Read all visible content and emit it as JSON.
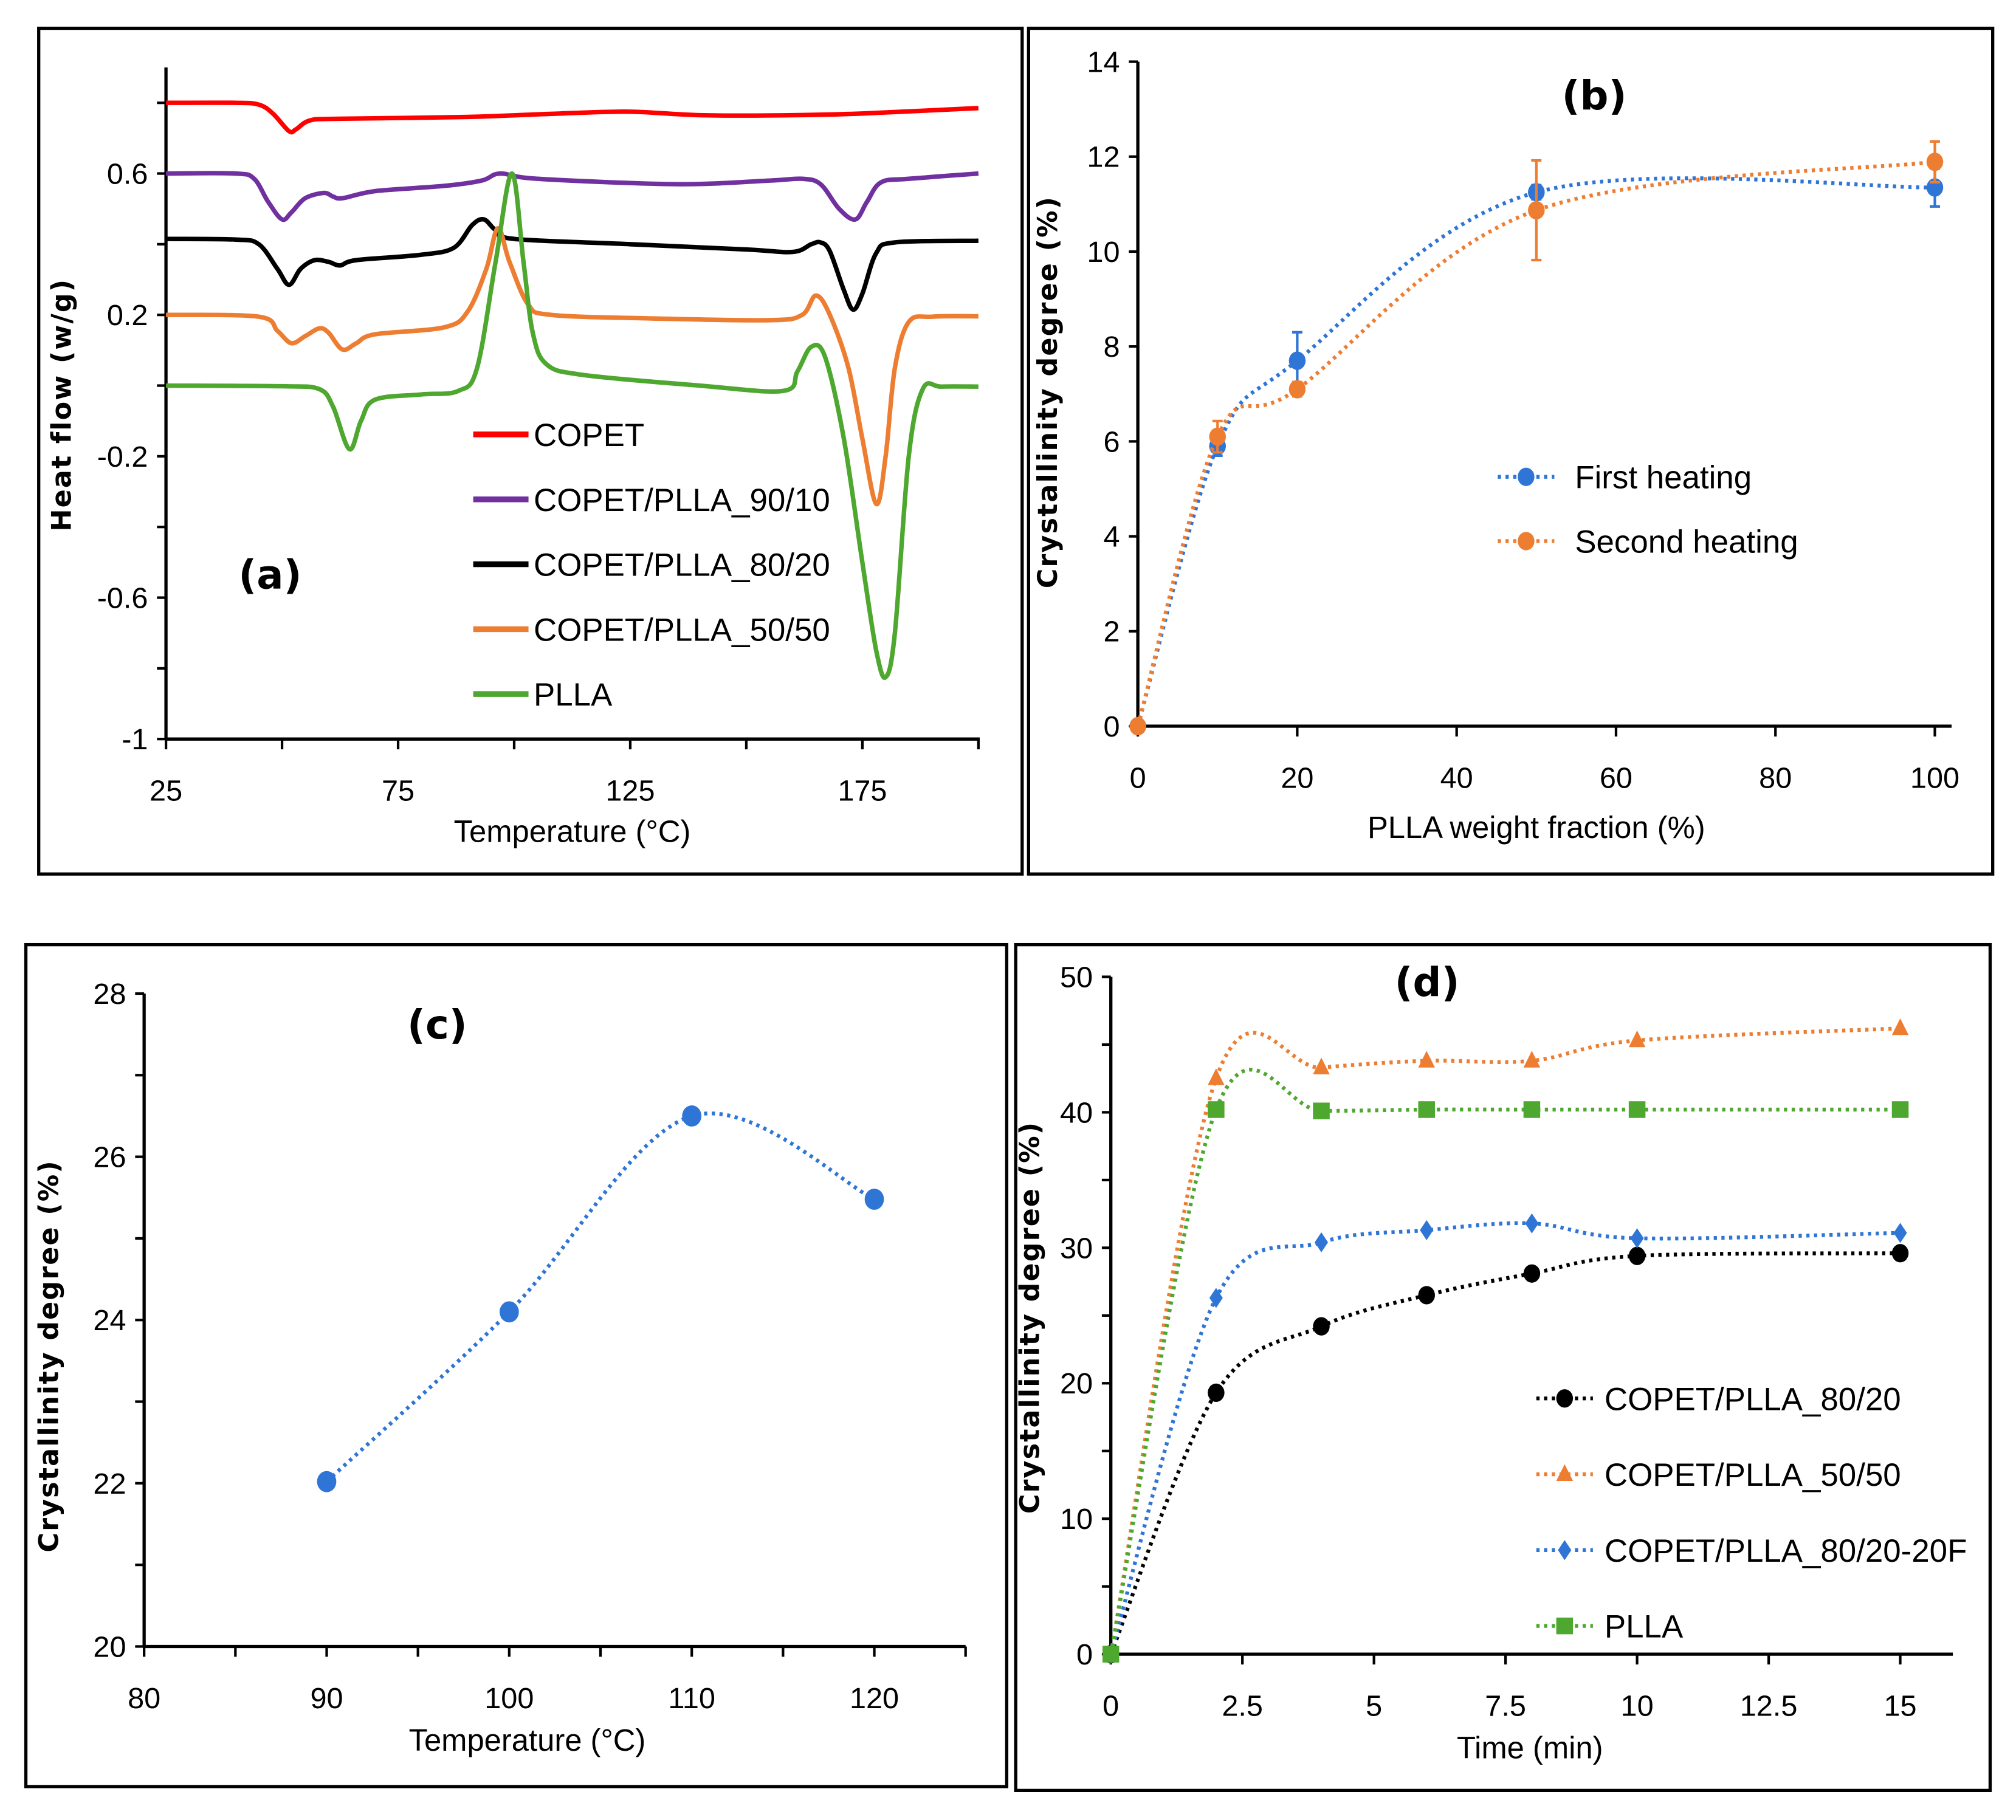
{
  "chart_data": [
    {
      "type": "line",
      "panel_label": "(a)",
      "xlabel": "Temperature (°C)",
      "ylabel": "Heat flow (w/g)",
      "xlim": [
        25,
        200
      ],
      "ylim": [
        -1,
        0.9
      ],
      "xticks": [
        25,
        75,
        125,
        175
      ],
      "xtick_labels": [
        "25",
        "75",
        "125",
        "175"
      ],
      "yticks": [
        -1,
        -0.6,
        -0.2,
        0.2,
        0.6
      ],
      "ytick_labels": [
        "-1",
        "-0.6",
        "-0.2",
        "0.2",
        "0.6"
      ],
      "grid": false,
      "legend_position": "center",
      "series": [
        {
          "name": "COPET",
          "color": "#ff0000",
          "points": [
            [
              25,
              0.8
            ],
            [
              40,
              0.8
            ],
            [
              45,
              0.795
            ],
            [
              48,
              0.77
            ],
            [
              51.5,
              0.72
            ],
            [
              53,
              0.725
            ],
            [
              56,
              0.75
            ],
            [
              62,
              0.755
            ],
            [
              90,
              0.76
            ],
            [
              110,
              0.77
            ],
            [
              125,
              0.775
            ],
            [
              140,
              0.765
            ],
            [
              160,
              0.765
            ],
            [
              175,
              0.77
            ],
            [
              200,
              0.785
            ]
          ]
        },
        {
          "name": "COPET/PLLA_90/10",
          "color": "#7030a0",
          "points": [
            [
              25,
              0.6
            ],
            [
              40,
              0.6
            ],
            [
              44,
              0.585
            ],
            [
              47,
              0.52
            ],
            [
              50,
              0.47
            ],
            [
              52,
              0.49
            ],
            [
              55,
              0.53
            ],
            [
              59,
              0.545
            ],
            [
              61,
              0.535
            ],
            [
              63,
              0.53
            ],
            [
              70,
              0.55
            ],
            [
              85,
              0.565
            ],
            [
              93,
              0.58
            ],
            [
              97,
              0.6
            ],
            [
              105,
              0.585
            ],
            [
              135,
              0.57
            ],
            [
              155,
              0.58
            ],
            [
              162,
              0.585
            ],
            [
              166,
              0.57
            ],
            [
              170,
              0.5
            ],
            [
              173.5,
              0.47
            ],
            [
              176,
              0.52
            ],
            [
              179,
              0.575
            ],
            [
              185,
              0.585
            ],
            [
              200,
              0.6
            ]
          ]
        },
        {
          "name": "COPET/PLLA_80/20",
          "color": "#000000",
          "points": [
            [
              25,
              0.415
            ],
            [
              40,
              0.413
            ],
            [
              45,
              0.4
            ],
            [
              49,
              0.33
            ],
            [
              51.5,
              0.285
            ],
            [
              54,
              0.33
            ],
            [
              57,
              0.355
            ],
            [
              60,
              0.35
            ],
            [
              62.5,
              0.34
            ],
            [
              66,
              0.355
            ],
            [
              80,
              0.37
            ],
            [
              87,
              0.39
            ],
            [
              91,
              0.455
            ],
            [
              93.5,
              0.47
            ],
            [
              96,
              0.44
            ],
            [
              100,
              0.415
            ],
            [
              125,
              0.4
            ],
            [
              150,
              0.385
            ],
            [
              160,
              0.378
            ],
            [
              164,
              0.4
            ],
            [
              166,
              0.405
            ],
            [
              168,
              0.38
            ],
            [
              171,
              0.27
            ],
            [
              173,
              0.215
            ],
            [
              175,
              0.26
            ],
            [
              178,
              0.375
            ],
            [
              182,
              0.405
            ],
            [
              200,
              0.41
            ]
          ]
        },
        {
          "name": "COPET/PLLA_50/50",
          "color": "#ed7d31",
          "points": [
            [
              25,
              0.2
            ],
            [
              45,
              0.195
            ],
            [
              49,
              0.155
            ],
            [
              52,
              0.12
            ],
            [
              55,
              0.14
            ],
            [
              58,
              0.162
            ],
            [
              60,
              0.15
            ],
            [
              63,
              0.102
            ],
            [
              66,
              0.12
            ],
            [
              70,
              0.145
            ],
            [
              85,
              0.165
            ],
            [
              90,
              0.21
            ],
            [
              94,
              0.33
            ],
            [
              96.5,
              0.445
            ],
            [
              99,
              0.35
            ],
            [
              103,
              0.23
            ],
            [
              108,
              0.2
            ],
            [
              130,
              0.19
            ],
            [
              155,
              0.185
            ],
            [
              162,
              0.2
            ],
            [
              165,
              0.255
            ],
            [
              168,
              0.2
            ],
            [
              172,
              0.05
            ],
            [
              175,
              -0.15
            ],
            [
              178,
              -0.335
            ],
            [
              180,
              -0.2
            ],
            [
              182,
              0.05
            ],
            [
              185,
              0.18
            ],
            [
              190,
              0.195
            ],
            [
              200,
              0.196
            ]
          ]
        },
        {
          "name": "PLLA",
          "color": "#4ea72e",
          "points": [
            [
              25,
              0
            ],
            [
              50,
              -0.002
            ],
            [
              58,
              -0.01
            ],
            [
              61,
              -0.06
            ],
            [
              64.5,
              -0.18
            ],
            [
              67,
              -0.1
            ],
            [
              70,
              -0.04
            ],
            [
              80,
              -0.025
            ],
            [
              88,
              -0.015
            ],
            [
              92,
              0.05
            ],
            [
              96,
              0.35
            ],
            [
              99.5,
              0.6
            ],
            [
              102,
              0.35
            ],
            [
              104,
              0.15
            ],
            [
              107,
              0.06
            ],
            [
              115,
              0.03
            ],
            [
              140,
              0.0
            ],
            [
              158,
              -0.015
            ],
            [
              161,
              0.04
            ],
            [
              164,
              0.11
            ],
            [
              167,
              0.08
            ],
            [
              171,
              -0.15
            ],
            [
              175,
              -0.5
            ],
            [
              178,
              -0.75
            ],
            [
              180,
              -0.825
            ],
            [
              182,
              -0.7
            ],
            [
              185,
              -0.2
            ],
            [
              188,
              -0.01
            ],
            [
              192,
              -0.003
            ],
            [
              200,
              -0.003
            ]
          ]
        }
      ]
    },
    {
      "type": "line",
      "panel_label": "(b)",
      "xlabel": "PLLA weight fraction (%)",
      "ylabel": "Crystallinity degree (%)",
      "xlim": [
        0,
        100
      ],
      "ylim": [
        0,
        14
      ],
      "xticks": [
        0,
        20,
        40,
        60,
        80,
        100
      ],
      "xtick_labels": [
        "0",
        "20",
        "40",
        "60",
        "80",
        "100"
      ],
      "yticks": [
        0,
        2,
        4,
        6,
        8,
        10,
        12,
        14
      ],
      "ytick_labels": [
        "0",
        "2",
        "4",
        "6",
        "8",
        "10",
        "12",
        "14"
      ],
      "grid": false,
      "legend_position": "center-right",
      "series": [
        {
          "name": "First heating",
          "color": "#2e75d6",
          "x": [
            0,
            10,
            20,
            50,
            100
          ],
          "y": [
            0,
            5.9,
            7.7,
            11.25,
            11.35
          ],
          "err": [
            0,
            0.2,
            0.6,
            0.15,
            0.4
          ]
        },
        {
          "name": "Second heating",
          "color": "#ed7d31",
          "x": [
            0,
            10,
            20,
            50,
            100
          ],
          "y": [
            0,
            6.1,
            7.1,
            10.87,
            11.89
          ],
          "err": [
            0,
            0.33,
            0.15,
            1.05,
            0.43
          ]
        }
      ]
    },
    {
      "type": "line",
      "panel_label": "(c)",
      "xlabel": "Temperature (°C)",
      "ylabel": "Crystallinity degree (%)",
      "xlim": [
        80,
        125
      ],
      "ylim": [
        20,
        28
      ],
      "xticks": [
        80,
        90,
        100,
        110,
        120
      ],
      "xtick_labels": [
        "80",
        "90",
        "100",
        "110",
        "120"
      ],
      "yticks": [
        20,
        22,
        24,
        26,
        28
      ],
      "ytick_labels": [
        "20",
        "22",
        "24",
        "26",
        "28"
      ],
      "grid": false,
      "series": [
        {
          "name": "Crystallinity",
          "color": "#2e75d6",
          "x": [
            90,
            100,
            110,
            120
          ],
          "y": [
            22.02,
            24.1,
            26.5,
            25.48
          ]
        }
      ]
    },
    {
      "type": "line",
      "panel_label": "(d)",
      "xlabel": "Time (min)",
      "ylabel": "Crystallinity degree (%)",
      "xlim": [
        0,
        16
      ],
      "ylim": [
        0,
        50
      ],
      "xticks": [
        0,
        2.5,
        5,
        7.5,
        10,
        12.5,
        15
      ],
      "xtick_labels": [
        "0",
        "2.5",
        "5",
        "7.5",
        "10",
        "12.5",
        "15"
      ],
      "yticks": [
        0,
        10,
        20,
        30,
        40,
        50
      ],
      "ytick_labels": [
        "0",
        "10",
        "20",
        "30",
        "40",
        "50"
      ],
      "grid": false,
      "legend_position": "bottom-right",
      "series": [
        {
          "name": "COPET/PLLA_80/20",
          "color": "#000000",
          "marker": "circle",
          "x": [
            0,
            2,
            4,
            6,
            8,
            10,
            15
          ],
          "y": [
            0,
            19.3,
            24.2,
            26.5,
            28.1,
            29.4,
            29.6
          ]
        },
        {
          "name": "COPET/PLLA_50/50",
          "color": "#ed7d31",
          "marker": "triangle",
          "x": [
            0,
            2,
            4,
            6,
            8,
            10,
            15
          ],
          "y": [
            0,
            42.5,
            43.3,
            43.8,
            43.8,
            45.3,
            46.2
          ]
        },
        {
          "name": "COPET/PLLA_80/20-20F",
          "color": "#2e75d6",
          "marker": "diamond",
          "x": [
            0,
            2,
            4,
            6,
            8,
            10,
            15
          ],
          "y": [
            0,
            26.3,
            30.4,
            31.3,
            31.8,
            30.7,
            31.1
          ]
        },
        {
          "name": "PLLA",
          "color": "#4ea72e",
          "marker": "square",
          "x": [
            0,
            2,
            4,
            6,
            8,
            10,
            15
          ],
          "y": [
            0,
            40.2,
            40.1,
            40.2,
            40.2,
            40.2,
            40.2
          ]
        }
      ]
    }
  ]
}
